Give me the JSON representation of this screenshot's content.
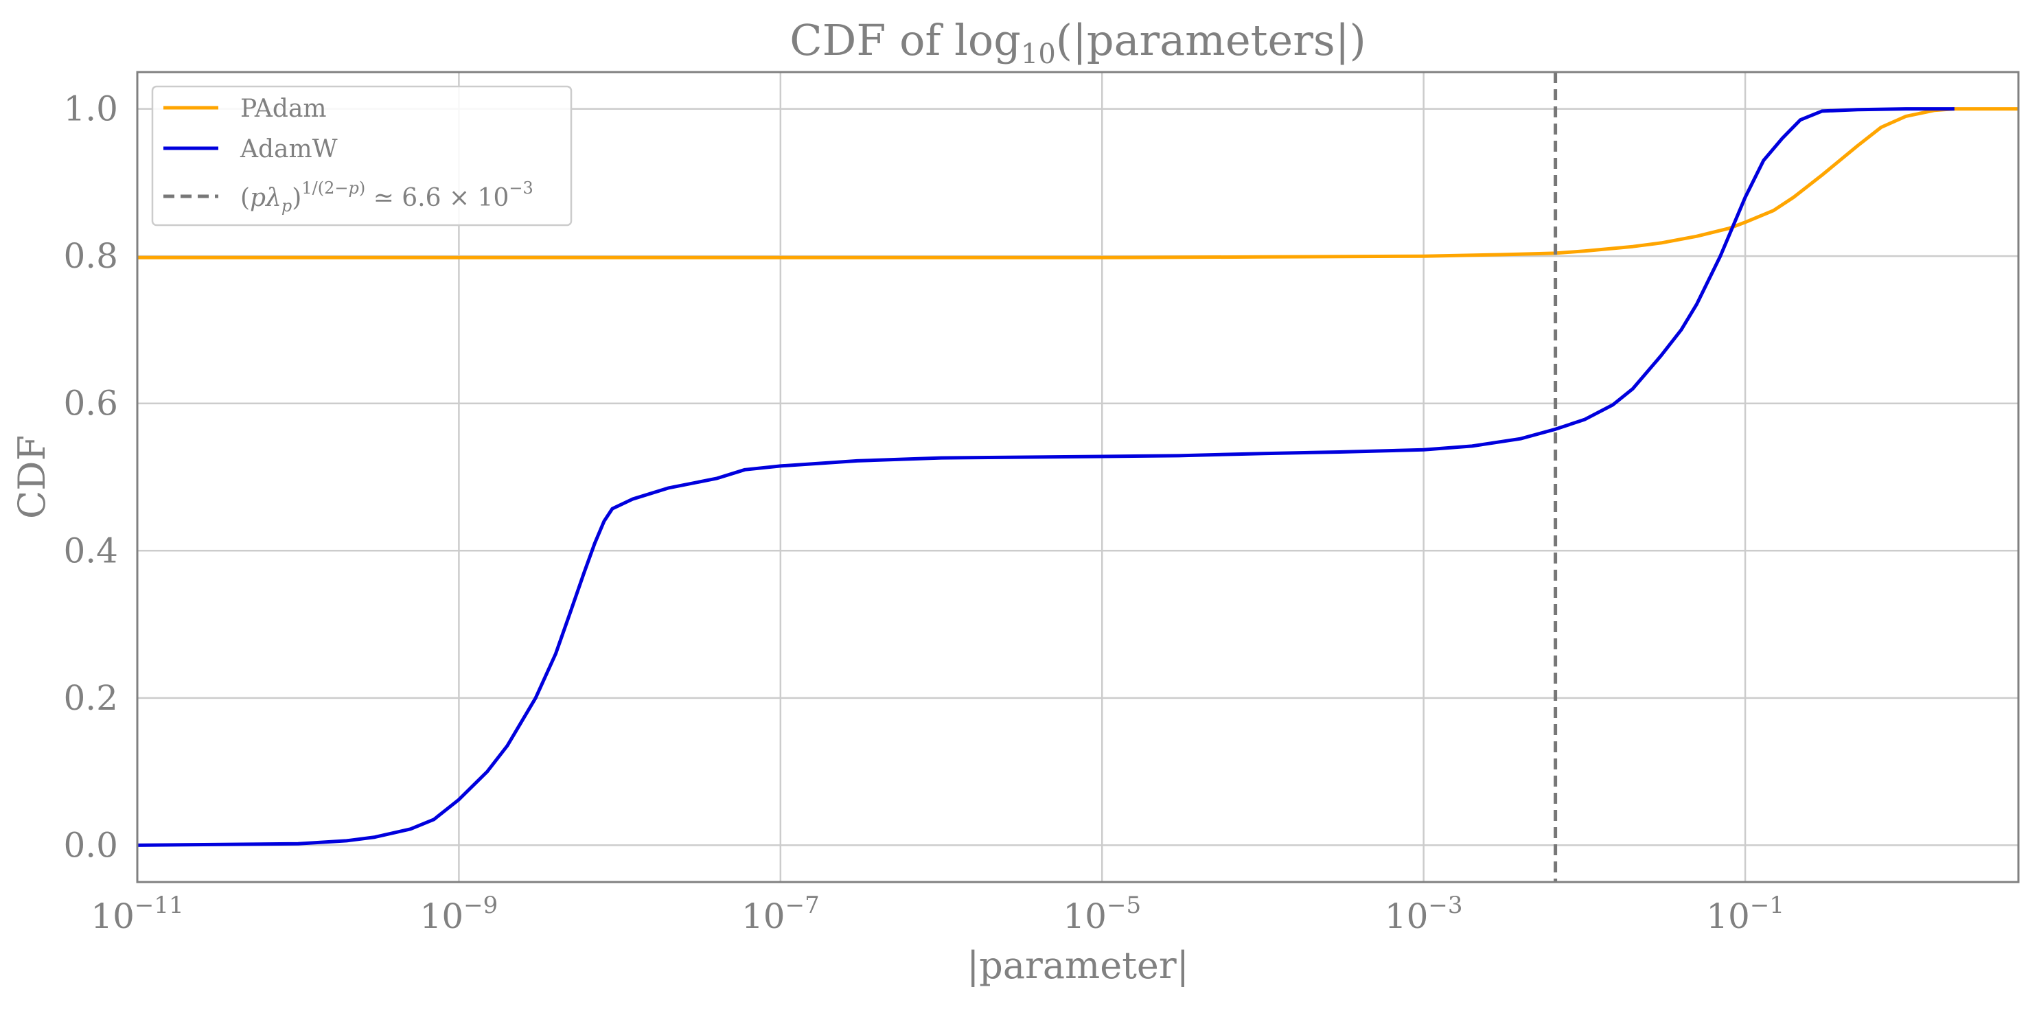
{
  "chart_data": {
    "type": "line",
    "title": "CDF of log10(|parameters|)",
    "xlabel": "|parameter|",
    "ylabel": "CDF",
    "x_scale": "log",
    "xlim": [
      1e-11,
      5
    ],
    "ylim": [
      -0.05,
      1.05
    ],
    "grid": true,
    "legend_position": "top-left",
    "x_ticks": [
      {
        "value": 1e-11,
        "label": "10^-11",
        "base": "10",
        "exp": "−11"
      },
      {
        "value": 1e-09,
        "label": "10^-9",
        "base": "10",
        "exp": "−9"
      },
      {
        "value": 1e-07,
        "label": "10^-7",
        "base": "10",
        "exp": "−7"
      },
      {
        "value": 1e-05,
        "label": "10^-5",
        "base": "10",
        "exp": "−5"
      },
      {
        "value": 0.001,
        "label": "10^-3",
        "base": "10",
        "exp": "−3"
      },
      {
        "value": 0.1,
        "label": "10^-1",
        "base": "10",
        "exp": "−1"
      }
    ],
    "y_ticks": [
      {
        "value": 0.0,
        "label": "0.0"
      },
      {
        "value": 0.2,
        "label": "0.2"
      },
      {
        "value": 0.4,
        "label": "0.4"
      },
      {
        "value": 0.6,
        "label": "0.6"
      },
      {
        "value": 0.8,
        "label": "0.8"
      },
      {
        "value": 1.0,
        "label": "1.0"
      }
    ],
    "series": [
      {
        "name": "PAdam",
        "color": "#FFA500",
        "style": "solid",
        "points": [
          [
            1e-11,
            0.798
          ],
          [
            1e-09,
            0.798
          ],
          [
            1e-07,
            0.798
          ],
          [
            1e-05,
            0.798
          ],
          [
            0.0001,
            0.799
          ],
          [
            0.001,
            0.8
          ],
          [
            0.003,
            0.802
          ],
          [
            0.0066,
            0.804
          ],
          [
            0.01,
            0.807
          ],
          [
            0.02,
            0.813
          ],
          [
            0.03,
            0.818
          ],
          [
            0.05,
            0.827
          ],
          [
            0.08,
            0.838
          ],
          [
            0.1,
            0.846
          ],
          [
            0.15,
            0.862
          ],
          [
            0.2,
            0.88
          ],
          [
            0.3,
            0.91
          ],
          [
            0.5,
            0.95
          ],
          [
            0.7,
            0.975
          ],
          [
            1.0,
            0.99
          ],
          [
            1.5,
            0.998
          ],
          [
            2.0,
            1.0
          ],
          [
            5.0,
            1.0
          ]
        ]
      },
      {
        "name": "AdamW",
        "color": "#0000DD",
        "style": "solid",
        "points": [
          [
            1e-11,
            0.0
          ],
          [
            1e-10,
            0.002
          ],
          [
            2e-10,
            0.006
          ],
          [
            3e-10,
            0.011
          ],
          [
            5e-10,
            0.022
          ],
          [
            7e-10,
            0.035
          ],
          [
            1e-09,
            0.062
          ],
          [
            1.5e-09,
            0.1
          ],
          [
            2e-09,
            0.135
          ],
          [
            3e-09,
            0.2
          ],
          [
            4e-09,
            0.26
          ],
          [
            5e-09,
            0.32
          ],
          [
            6e-09,
            0.37
          ],
          [
            7e-09,
            0.41
          ],
          [
            8e-09,
            0.44
          ],
          [
            9e-09,
            0.457
          ],
          [
            1.2e-08,
            0.47
          ],
          [
            2e-08,
            0.485
          ],
          [
            4e-08,
            0.498
          ],
          [
            6e-08,
            0.51
          ],
          [
            1e-07,
            0.515
          ],
          [
            3e-07,
            0.522
          ],
          [
            1e-06,
            0.526
          ],
          [
            1e-05,
            0.528
          ],
          [
            3e-05,
            0.529
          ],
          [
            0.0001,
            0.532
          ],
          [
            0.0003,
            0.534
          ],
          [
            0.001,
            0.537
          ],
          [
            0.002,
            0.542
          ],
          [
            0.004,
            0.552
          ],
          [
            0.0066,
            0.565
          ],
          [
            0.01,
            0.578
          ],
          [
            0.015,
            0.598
          ],
          [
            0.02,
            0.62
          ],
          [
            0.03,
            0.665
          ],
          [
            0.04,
            0.7
          ],
          [
            0.05,
            0.735
          ],
          [
            0.07,
            0.8
          ],
          [
            0.1,
            0.88
          ],
          [
            0.13,
            0.93
          ],
          [
            0.17,
            0.96
          ],
          [
            0.22,
            0.985
          ],
          [
            0.3,
            0.997
          ],
          [
            0.5,
            0.999
          ],
          [
            1.0,
            1.0
          ],
          [
            2.0,
            1.0
          ]
        ]
      }
    ],
    "reference_line": {
      "x": 0.0066,
      "color": "#777777",
      "style": "dashed",
      "legend_label": "(pλp)^(1/(2−p)) ≃ 6.6 × 10^−3"
    }
  }
}
